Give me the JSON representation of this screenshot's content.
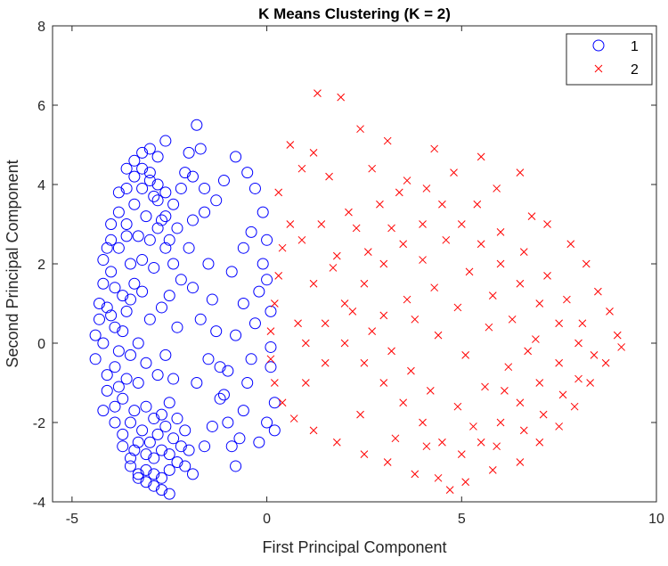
{
  "chart_data": {
    "type": "scatter",
    "title": "K Means Clustering (K = 2)",
    "xlabel": "First Principal Component",
    "ylabel": "Second Principal Component",
    "xlim": [
      -5.5,
      10
    ],
    "ylim": [
      -4,
      8
    ],
    "xticks": [
      -5,
      0,
      5,
      10
    ],
    "yticks": [
      -4,
      -2,
      0,
      2,
      4,
      6,
      8
    ],
    "grid": false,
    "legend_position": "top-right",
    "series": [
      {
        "name": "1",
        "marker": "circle",
        "color": "#0000ff",
        "points": [
          [
            -4.4,
            0.2
          ],
          [
            -4.3,
            1.0
          ],
          [
            -4.2,
            2.1
          ],
          [
            -4.1,
            -0.8
          ],
          [
            -4.0,
            3.0
          ],
          [
            -3.9,
            -1.6
          ],
          [
            -3.8,
            3.8
          ],
          [
            -3.7,
            -2.3
          ],
          [
            -3.6,
            4.4
          ],
          [
            -3.5,
            -2.9
          ],
          [
            -3.4,
            4.6
          ],
          [
            -3.3,
            -3.3
          ],
          [
            -3.2,
            4.8
          ],
          [
            -3.1,
            -3.5
          ],
          [
            -3.0,
            4.9
          ],
          [
            -2.9,
            -3.6
          ],
          [
            -2.8,
            4.7
          ],
          [
            -2.7,
            -3.7
          ],
          [
            -2.6,
            5.1
          ],
          [
            -2.5,
            -3.8
          ],
          [
            -4.4,
            -0.4
          ],
          [
            -4.3,
            0.6
          ],
          [
            -4.2,
            1.5
          ],
          [
            -4.1,
            -1.2
          ],
          [
            -4.0,
            2.6
          ],
          [
            -3.9,
            -2.0
          ],
          [
            -3.8,
            3.3
          ],
          [
            -3.7,
            -2.6
          ],
          [
            -3.6,
            3.9
          ],
          [
            -3.5,
            -3.1
          ],
          [
            -3.4,
            4.2
          ],
          [
            -3.3,
            -3.4
          ],
          [
            -3.2,
            4.4
          ],
          [
            -3.1,
            -3.2
          ],
          [
            -3.0,
            4.3
          ],
          [
            -2.9,
            -3.3
          ],
          [
            -2.8,
            4.0
          ],
          [
            -2.7,
            -3.4
          ],
          [
            -2.6,
            3.8
          ],
          [
            -2.5,
            -3.2
          ],
          [
            -4.2,
            0.0
          ],
          [
            -4.1,
            0.9
          ],
          [
            -4.0,
            1.8
          ],
          [
            -3.9,
            -0.6
          ],
          [
            -3.8,
            2.4
          ],
          [
            -3.7,
            -1.4
          ],
          [
            -3.6,
            3.0
          ],
          [
            -3.5,
            -2.0
          ],
          [
            -3.4,
            3.5
          ],
          [
            -3.3,
            -2.5
          ],
          [
            -3.2,
            3.9
          ],
          [
            -3.1,
            -2.8
          ],
          [
            -3.0,
            4.1
          ],
          [
            -2.9,
            -2.9
          ],
          [
            -2.8,
            3.6
          ],
          [
            -2.7,
            -2.7
          ],
          [
            -2.6,
            3.2
          ],
          [
            -2.5,
            -2.8
          ],
          [
            -2.4,
            3.5
          ],
          [
            -2.3,
            -3.0
          ],
          [
            -3.9,
            0.4
          ],
          [
            -3.8,
            -0.2
          ],
          [
            -3.7,
            1.2
          ],
          [
            -3.6,
            -0.9
          ],
          [
            -3.5,
            2.0
          ],
          [
            -3.4,
            -1.7
          ],
          [
            -3.3,
            2.7
          ],
          [
            -3.2,
            -2.2
          ],
          [
            -3.1,
            3.2
          ],
          [
            -3.0,
            -2.5
          ],
          [
            -2.9,
            3.7
          ],
          [
            -2.8,
            -2.3
          ],
          [
            -2.7,
            3.1
          ],
          [
            -2.6,
            -2.1
          ],
          [
            -2.5,
            2.6
          ],
          [
            -2.4,
            -2.4
          ],
          [
            -2.3,
            2.9
          ],
          [
            -2.2,
            -2.6
          ],
          [
            -2.2,
            3.9
          ],
          [
            -2.1,
            -3.1
          ],
          [
            -3.6,
            0.8
          ],
          [
            -3.5,
            -0.3
          ],
          [
            -3.4,
            1.5
          ],
          [
            -3.3,
            -1.0
          ],
          [
            -3.2,
            2.1
          ],
          [
            -3.1,
            -1.6
          ],
          [
            -3.0,
            2.6
          ],
          [
            -2.9,
            -1.9
          ],
          [
            -2.8,
            2.9
          ],
          [
            -2.7,
            -1.8
          ],
          [
            -2.6,
            2.4
          ],
          [
            -2.5,
            -1.5
          ],
          [
            -2.4,
            2.0
          ],
          [
            -2.3,
            -1.9
          ],
          [
            -2.2,
            1.6
          ],
          [
            -2.1,
            -2.2
          ],
          [
            -2.0,
            2.4
          ],
          [
            -2.0,
            -2.7
          ],
          [
            -1.9,
            3.1
          ],
          [
            -1.9,
            -3.3
          ],
          [
            -2.1,
            4.3
          ],
          [
            -2.0,
            4.8
          ],
          [
            -1.8,
            5.5
          ],
          [
            -1.7,
            4.9
          ],
          [
            -1.6,
            3.3
          ],
          [
            -1.5,
            2.0
          ],
          [
            -1.4,
            1.1
          ],
          [
            -1.3,
            0.3
          ],
          [
            -1.2,
            -0.6
          ],
          [
            -1.1,
            -1.3
          ],
          [
            -1.0,
            -2.0
          ],
          [
            -0.9,
            -2.6
          ],
          [
            -0.8,
            -3.1
          ],
          [
            -0.7,
            -2.4
          ],
          [
            -0.6,
            -1.7
          ],
          [
            -0.5,
            -1.0
          ],
          [
            -0.4,
            -0.4
          ],
          [
            -0.3,
            0.5
          ],
          [
            -0.2,
            1.3
          ],
          [
            -0.1,
            2.0
          ],
          [
            0.0,
            2.6
          ],
          [
            -0.1,
            3.3
          ],
          [
            -0.3,
            3.9
          ],
          [
            -0.5,
            4.3
          ],
          [
            -0.8,
            4.7
          ],
          [
            -1.1,
            4.1
          ],
          [
            -1.3,
            3.6
          ],
          [
            -1.6,
            3.9
          ],
          [
            -1.9,
            4.2
          ],
          [
            0.1,
            -0.6
          ],
          [
            0.2,
            -1.5
          ],
          [
            0.0,
            -2.0
          ],
          [
            0.2,
            -2.2
          ],
          [
            -0.2,
            -2.5
          ],
          [
            0.1,
            0.8
          ],
          [
            0.0,
            1.6
          ],
          [
            0.1,
            -0.1
          ],
          [
            -0.4,
            2.8
          ],
          [
            -0.6,
            2.4
          ],
          [
            -0.9,
            1.8
          ],
          [
            -1.5,
            -0.4
          ],
          [
            -1.7,
            0.6
          ],
          [
            -1.8,
            -1.0
          ],
          [
            -1.9,
            1.4
          ],
          [
            -1.6,
            -2.6
          ],
          [
            -1.4,
            -2.1
          ],
          [
            -1.2,
            -1.4
          ],
          [
            -1.0,
            -0.7
          ],
          [
            -0.8,
            0.2
          ],
          [
            -0.6,
            1.0
          ],
          [
            -4.0,
            0.7
          ],
          [
            -4.1,
            2.4
          ],
          [
            -3.9,
            1.4
          ],
          [
            -3.8,
            -1.1
          ],
          [
            -4.2,
            -1.7
          ],
          [
            -3.7,
            0.3
          ],
          [
            -3.6,
            2.7
          ],
          [
            -3.5,
            1.1
          ],
          [
            -3.4,
            -2.7
          ],
          [
            -3.3,
            0.0
          ],
          [
            -3.2,
            1.3
          ],
          [
            -3.1,
            -0.5
          ],
          [
            -3.0,
            0.6
          ],
          [
            -2.9,
            1.9
          ],
          [
            -2.8,
            -0.8
          ],
          [
            -2.7,
            0.9
          ],
          [
            -2.6,
            -0.3
          ],
          [
            -2.5,
            1.2
          ],
          [
            -2.4,
            -0.9
          ],
          [
            -2.3,
            0.4
          ]
        ]
      },
      {
        "name": "2",
        "marker": "x",
        "color": "#ff0000",
        "points": [
          [
            1.3,
            6.3
          ],
          [
            1.9,
            6.2
          ],
          [
            2.4,
            5.4
          ],
          [
            3.1,
            5.1
          ],
          [
            0.6,
            5.0
          ],
          [
            1.2,
            4.8
          ],
          [
            4.3,
            4.9
          ],
          [
            5.5,
            4.7
          ],
          [
            6.5,
            4.3
          ],
          [
            0.9,
            4.4
          ],
          [
            0.3,
            3.8
          ],
          [
            1.6,
            4.2
          ],
          [
            2.7,
            4.4
          ],
          [
            3.6,
            4.1
          ],
          [
            4.8,
            4.3
          ],
          [
            5.9,
            3.9
          ],
          [
            6.8,
            3.2
          ],
          [
            7.2,
            3.0
          ],
          [
            7.8,
            2.5
          ],
          [
            8.2,
            2.0
          ],
          [
            8.5,
            1.3
          ],
          [
            8.8,
            0.8
          ],
          [
            9.0,
            0.2
          ],
          [
            9.1,
            -0.1
          ],
          [
            8.7,
            -0.5
          ],
          [
            8.3,
            -1.0
          ],
          [
            7.9,
            -1.6
          ],
          [
            7.5,
            -2.1
          ],
          [
            7.0,
            -2.5
          ],
          [
            6.5,
            -3.0
          ],
          [
            5.8,
            -3.2
          ],
          [
            5.1,
            -3.5
          ],
          [
            4.4,
            -3.4
          ],
          [
            3.8,
            -3.3
          ],
          [
            3.1,
            -3.0
          ],
          [
            2.5,
            -2.8
          ],
          [
            1.8,
            -2.5
          ],
          [
            1.2,
            -2.2
          ],
          [
            0.7,
            -1.9
          ],
          [
            0.4,
            -1.5
          ],
          [
            0.2,
            -1.0
          ],
          [
            0.1,
            -0.4
          ],
          [
            0.1,
            0.3
          ],
          [
            0.2,
            1.0
          ],
          [
            0.3,
            1.7
          ],
          [
            0.4,
            2.4
          ],
          [
            0.6,
            3.0
          ],
          [
            4.7,
            -3.7
          ],
          [
            1.0,
            0.0
          ],
          [
            1.5,
            0.5
          ],
          [
            2.0,
            1.0
          ],
          [
            2.5,
            1.5
          ],
          [
            3.0,
            2.0
          ],
          [
            3.5,
            2.5
          ],
          [
            4.0,
            3.0
          ],
          [
            4.5,
            3.5
          ],
          [
            5.0,
            3.0
          ],
          [
            5.5,
            2.5
          ],
          [
            6.0,
            2.0
          ],
          [
            6.5,
            1.5
          ],
          [
            7.0,
            1.0
          ],
          [
            7.5,
            0.5
          ],
          [
            8.0,
            0.0
          ],
          [
            7.5,
            -0.5
          ],
          [
            7.0,
            -1.0
          ],
          [
            6.5,
            -1.5
          ],
          [
            6.0,
            -2.0
          ],
          [
            5.5,
            -2.5
          ],
          [
            5.0,
            -2.8
          ],
          [
            4.5,
            -2.5
          ],
          [
            4.0,
            -2.0
          ],
          [
            3.5,
            -1.5
          ],
          [
            3.0,
            -1.0
          ],
          [
            2.5,
            -0.5
          ],
          [
            2.0,
            0.0
          ],
          [
            1.5,
            -0.5
          ],
          [
            1.0,
            -1.0
          ],
          [
            0.8,
            0.5
          ],
          [
            1.2,
            1.5
          ],
          [
            1.8,
            2.2
          ],
          [
            2.3,
            2.9
          ],
          [
            2.9,
            3.5
          ],
          [
            3.4,
            3.8
          ],
          [
            4.1,
            3.9
          ],
          [
            4.6,
            2.6
          ],
          [
            5.2,
            1.8
          ],
          [
            5.8,
            1.2
          ],
          [
            6.3,
            0.6
          ],
          [
            6.9,
            0.1
          ],
          [
            6.2,
            -0.6
          ],
          [
            5.6,
            -1.1
          ],
          [
            4.9,
            -1.6
          ],
          [
            4.2,
            -1.2
          ],
          [
            3.7,
            -0.7
          ],
          [
            3.2,
            -0.2
          ],
          [
            2.7,
            0.3
          ],
          [
            2.2,
            0.8
          ],
          [
            3.8,
            0.6
          ],
          [
            4.4,
            0.2
          ],
          [
            5.1,
            -0.3
          ],
          [
            4.9,
            0.9
          ],
          [
            4.3,
            1.4
          ],
          [
            3.6,
            1.1
          ],
          [
            3.0,
            0.7
          ],
          [
            2.4,
            -1.8
          ],
          [
            3.3,
            -2.4
          ],
          [
            4.1,
            -2.6
          ],
          [
            5.3,
            -2.1
          ],
          [
            6.1,
            -1.2
          ],
          [
            6.7,
            -0.2
          ],
          [
            5.7,
            0.4
          ],
          [
            4.0,
            2.1
          ],
          [
            3.2,
            2.9
          ],
          [
            2.1,
            3.3
          ],
          [
            1.4,
            3.0
          ],
          [
            0.9,
            2.6
          ],
          [
            1.7,
            1.9
          ],
          [
            2.6,
            2.3
          ],
          [
            5.4,
            3.5
          ],
          [
            6.0,
            2.8
          ],
          [
            6.6,
            2.3
          ],
          [
            7.2,
            1.7
          ],
          [
            7.7,
            1.1
          ],
          [
            8.1,
            0.5
          ],
          [
            8.4,
            -0.3
          ],
          [
            8.0,
            -0.9
          ],
          [
            7.6,
            -1.3
          ],
          [
            7.1,
            -1.8
          ],
          [
            6.6,
            -2.2
          ],
          [
            5.9,
            -2.6
          ]
        ]
      }
    ]
  }
}
